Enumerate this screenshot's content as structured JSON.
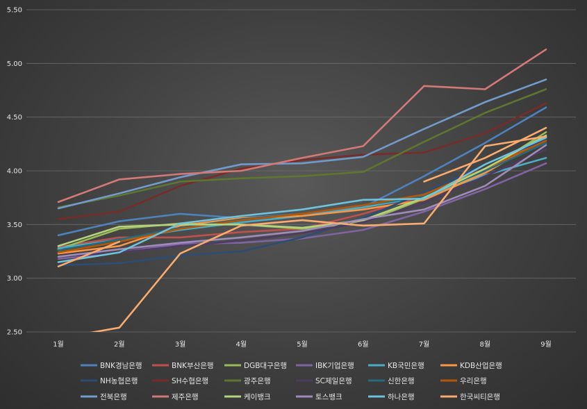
{
  "chart_data": {
    "type": "line",
    "title": "",
    "xlabel": "",
    "ylabel": "",
    "categories": [
      "1월",
      "2월",
      "3월",
      "4월",
      "5월",
      "6월",
      "7월",
      "8월",
      "9월"
    ],
    "ylim": [
      2.5,
      5.5
    ],
    "yticks": [
      "2.50",
      "3.00",
      "3.50",
      "4.00",
      "4.50",
      "5.00",
      "5.50"
    ],
    "grid": "horizontal",
    "legend_position": "bottom",
    "series": [
      {
        "name": "BNK경남은행",
        "color": "#4f81bd",
        "values": [
          3.4,
          3.53,
          3.6,
          3.56,
          3.6,
          3.66,
          3.95,
          4.26,
          4.59
        ]
      },
      {
        "name": "BNK부산은행",
        "color": "#c0504d",
        "values": [
          3.29,
          3.38,
          3.38,
          3.43,
          3.46,
          3.6,
          3.77,
          3.99,
          4.32
        ]
      },
      {
        "name": "DGB대구은행",
        "color": "#9bbb59",
        "values": [
          3.27,
          3.46,
          3.51,
          3.5,
          3.46,
          3.52,
          3.74,
          4.0,
          4.36
        ]
      },
      {
        "name": "IBK기업은행",
        "color": "#8064a2",
        "values": [
          3.18,
          3.24,
          3.32,
          3.33,
          3.37,
          3.45,
          3.62,
          3.83,
          4.07
        ]
      },
      {
        "name": "KB국민은행",
        "color": "#4bacc6",
        "values": [
          3.28,
          3.36,
          3.45,
          3.52,
          3.58,
          3.66,
          3.76,
          3.96,
          4.12
        ]
      },
      {
        "name": "KDB산업은행",
        "color": "#f79646",
        "values": [
          3.23,
          3.3,
          3.49,
          3.56,
          3.58,
          3.64,
          3.73,
          3.98,
          4.31
        ]
      },
      {
        "name": "NH농협은행",
        "color": "#2c4d75",
        "values": [
          3.12,
          3.14,
          3.21,
          3.25,
          3.38,
          3.56,
          3.8,
          4.06,
          4.29
        ]
      },
      {
        "name": "SH수협은행",
        "color": "#772c2a",
        "values": [
          3.55,
          3.62,
          3.86,
          4.02,
          4.1,
          4.15,
          4.17,
          4.35,
          4.63
        ]
      },
      {
        "name": "광주은행",
        "color": "#5f7530",
        "values": [
          3.66,
          3.77,
          3.9,
          3.93,
          3.95,
          3.99,
          4.27,
          4.54,
          4.76
        ]
      },
      {
        "name": "SC제일은행",
        "color": "#4d3b62",
        "values": [
          3.2,
          3.24,
          3.3,
          3.35,
          3.42,
          3.52,
          3.7,
          3.95,
          4.2
        ]
      },
      {
        "name": "신한은행",
        "color": "#276a7c",
        "values": [
          3.26,
          3.36,
          3.47,
          3.55,
          3.6,
          3.68,
          3.76,
          4.0,
          4.26
        ]
      },
      {
        "name": "우리은행",
        "color": "#b65708",
        "values": [
          3.24,
          3.34,
          3.46,
          3.54,
          3.6,
          3.68,
          3.78,
          4.02,
          4.28
        ]
      },
      {
        "name": "전북은행",
        "color": "#729aca",
        "values": [
          3.65,
          3.79,
          3.94,
          4.06,
          4.07,
          4.13,
          4.39,
          4.64,
          4.85
        ]
      },
      {
        "name": "제주은행",
        "color": "#d37a78",
        "values": [
          3.71,
          3.92,
          3.97,
          4.0,
          4.12,
          4.23,
          4.79,
          4.76,
          5.13
        ]
      },
      {
        "name": "케이뱅크",
        "color": "#b5d27f",
        "values": [
          3.3,
          3.48,
          3.5,
          3.5,
          3.47,
          3.54,
          3.75,
          4.02,
          4.33
        ]
      },
      {
        "name": "토스뱅크",
        "color": "#a08cb9",
        "values": [
          3.2,
          3.27,
          3.33,
          3.38,
          3.44,
          3.55,
          3.64,
          3.86,
          4.24
        ]
      },
      {
        "name": "하나은행",
        "color": "#6fc3dc",
        "values": [
          3.15,
          3.24,
          3.51,
          3.58,
          3.64,
          3.73,
          3.74,
          4.06,
          4.31
        ]
      },
      {
        "name": "한국씨티은행",
        "color": "#f9ab70",
        "values": [
          3.11,
          3.34,
          null,
          null,
          null,
          null,
          3.9,
          4.12,
          4.4
        ]
      },
      {
        "name": "",
        "color": "#f9ab70",
        "values": [
          2.44,
          2.54,
          3.23,
          3.49,
          3.54,
          3.49,
          3.51,
          4.23,
          4.32
        ]
      }
    ]
  }
}
